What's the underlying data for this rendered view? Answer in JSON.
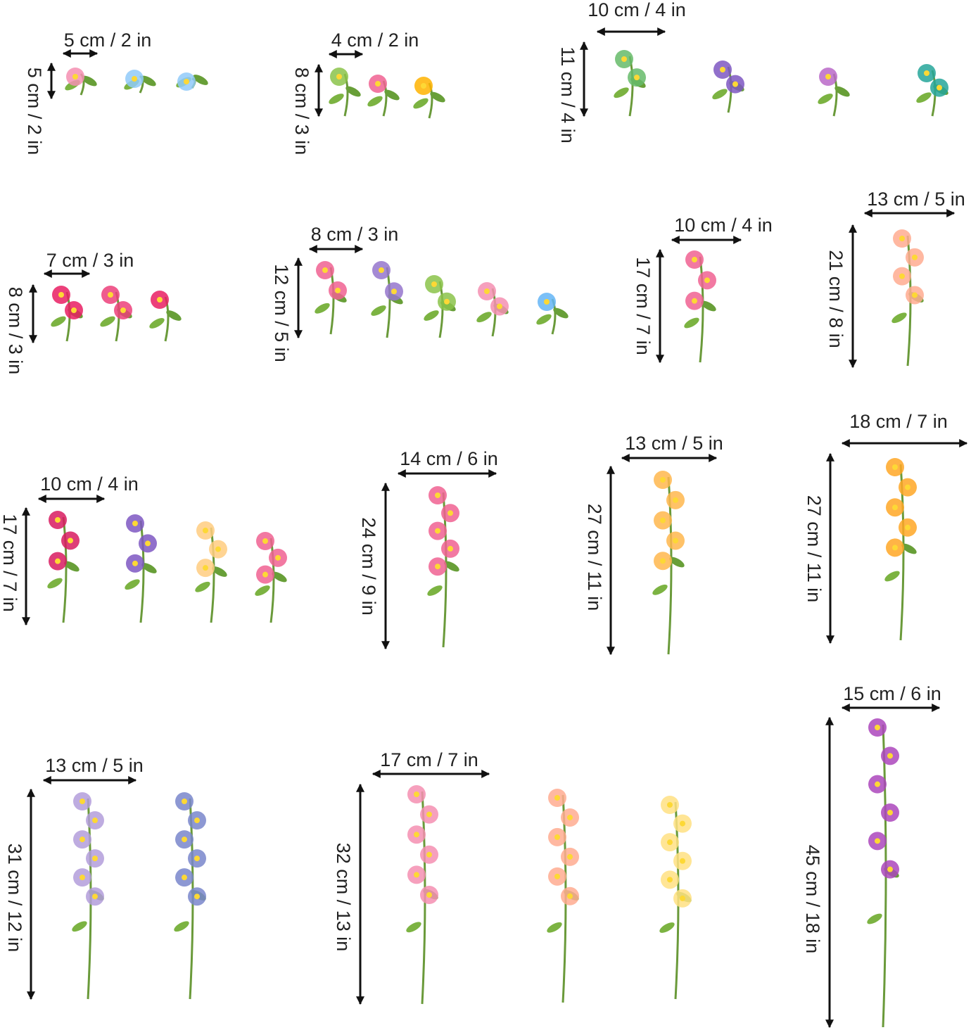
{
  "items": [
    {
      "width_label": "5 cm / 2 in",
      "height_label": "5 cm / 2 in"
    },
    {
      "width_label": "4 cm / 2 in",
      "height_label": "8 cm / 3 in"
    },
    {
      "width_label": "10 cm / 4 in",
      "height_label": "11 cm / 4 in"
    },
    {
      "width_label": "7 cm / 3 in",
      "height_label": "8 cm / 3 in"
    },
    {
      "width_label": "8 cm / 3 in",
      "height_label": "12 cm / 5 in"
    },
    {
      "width_label": "10 cm / 4 in",
      "height_label": "17 cm / 7 in"
    },
    {
      "width_label": "13 cm / 5 in",
      "height_label": "21 cm / 8 in"
    },
    {
      "width_label": "10 cm / 4 in",
      "height_label": "17 cm / 7 in"
    },
    {
      "width_label": "14 cm / 6 in",
      "height_label": "24 cm / 9 in"
    },
    {
      "width_label": "13 cm / 5 in",
      "height_label": "27 cm / 11 in"
    },
    {
      "width_label": "18 cm / 7 in",
      "height_label": "27 cm / 11 in"
    },
    {
      "width_label": "13 cm / 5 in",
      "height_label": "31 cm / 12 in"
    },
    {
      "width_label": "17 cm / 7 in",
      "height_label": "32 cm / 13 in"
    },
    {
      "width_label": "15 cm / 6 in",
      "height_label": "45 cm / 18 in"
    }
  ]
}
